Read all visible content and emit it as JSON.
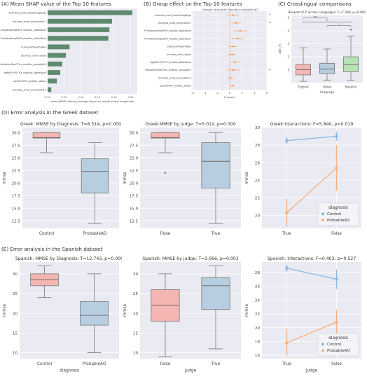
{
  "sections": {
    "a": "(A) Mean SHAP value of the Top 10 features",
    "b": "(B) Group effect on the Top 10 features",
    "c": "(C) Crosslingual comparisons",
    "d": "(D) Error analysis in the Greek dataset",
    "e": "(E) Error analysis in the Spanish dataset"
  },
  "chart_data": [
    {
      "id": "A",
      "type": "bar",
      "orientation": "horizontal",
      "categories": [
        "business_small_statsPartsgBuge",
        "business_small_percentile0.1",
        "PTimeAdvaltrcgPaiPX_smaDoc_sbbasNase",
        "PTimeAdvaltrcgPaiPX_smaDoc_sbbasNase",
        "businessPhaseProBox",
        "business_small_slopeI",
        "PSacdtionvPaeP-Pcs_smaDoc_pcbusgt6.0",
        "bgNaPX-PH1-PX_smaDoc_sbbasNase",
        "speedrPaPX_smaDoc_sbbasI",
        "business_small_percentile0.3"
      ],
      "values": [
        0.255,
        0.194,
        0.186,
        0.183,
        0.066,
        0.055,
        0.044,
        0.038,
        0.028,
        0.011
      ],
      "xlabel": "mean(|SHAP value|) (average impact on model output magnitude)",
      "xlim": [
        0,
        0.27
      ],
      "color": "#5f8a6e"
    },
    {
      "id": "B",
      "type": "scatter",
      "title": "Changes of acoustic features in probable AD",
      "categories": [
        "business_small_statsPartsgBuge",
        "business_small_percentile0.1",
        "PTimeAdvaltrcgPaiPX_smaDoc_sbbasNase",
        "PTimeAdvaltrcgPaiPX_smaDoc_sbbasNase",
        "businessPhaseProBox",
        "business_small_slopeI",
        "bgNaPX-PH1-PX_smaDoc_sbbasNase",
        "PSacdtionvPaeP-Pcs_smaDoc_pcbusgt6.0",
        "business_small_percentile0.3",
        "speedrPaPX_smaDoc_sbbasI"
      ],
      "values": [
        0.5,
        1.0,
        1.7,
        1.3,
        0.5,
        0.4,
        0.8,
        0.6,
        0.2,
        0.4
      ],
      "errors": [
        1.0,
        0.8,
        1.1,
        1.0,
        0.7,
        0.6,
        0.8,
        1.1,
        0.6,
        0.5
      ],
      "markers": [
        "*",
        "*",
        "",
        "",
        "",
        "",
        "",
        "*",
        "",
        ""
      ],
      "xlabel": "Z scores",
      "xlim": [
        -6,
        6
      ],
      "xticks": [
        "-6",
        "-4",
        "-2",
        "0",
        "2",
        "4",
        "6"
      ]
    },
    {
      "id": "C",
      "type": "box",
      "title": "Boxplot of Z across Languages: F=7.300, p=0.001",
      "xlabel": "Language",
      "ylabel": "attri_A",
      "categories": [
        "English",
        "Greek",
        "Spanish"
      ],
      "boxes": [
        {
          "min": 0.1,
          "q1": 0.6,
          "median": 1.0,
          "q3": 1.4,
          "max": 2.7
        },
        {
          "min": 0.2,
          "q1": 0.7,
          "median": 1.05,
          "q3": 1.5,
          "max": 2.6
        },
        {
          "min": 0.2,
          "q1": 0.85,
          "median": 1.4,
          "q3": 2.0,
          "max": 3.6,
          "outliers": [
            4.1
          ]
        }
      ],
      "ylim": [
        0,
        5.2
      ],
      "yticks": [
        "1",
        "2",
        "3",
        "4",
        "5"
      ],
      "significance": [
        {
          "from": 0,
          "to": 1,
          "label": "ns"
        },
        {
          "from": 0,
          "to": 2,
          "label": "**"
        },
        {
          "from": 1,
          "to": 2,
          "label": "*"
        }
      ],
      "colors": [
        "#f4b6b2",
        "#b7cee0",
        "#b9e1b4"
      ]
    },
    {
      "id": "D1",
      "type": "box",
      "title": "Greek: MMSE by Diagnosis: T=8.514, p=0.000",
      "xlabel": "",
      "ylabel": "mmse",
      "categories": [
        "Control",
        "ProbableAD"
      ],
      "boxes": [
        {
          "min": 26,
          "q1": 28.9,
          "median": 29,
          "q3": 30,
          "max": 30
        },
        {
          "min": 12,
          "q1": 18,
          "median": 22.3,
          "q3": 24.8,
          "max": 28
        }
      ],
      "ylim": [
        11,
        31
      ],
      "yticks": [
        "12.5",
        "15.0",
        "17.5",
        "20.0",
        "22.5",
        "25.0",
        "27.5",
        "30.0"
      ]
    },
    {
      "id": "D2",
      "type": "box",
      "title": "Greek:MMSE by judge: T=5.012, p=0.000",
      "xlabel": "",
      "ylabel": "mmse",
      "categories": [
        "False",
        "True"
      ],
      "boxes": [
        {
          "min": 26,
          "q1": 28.9,
          "median": 29,
          "q3": 30,
          "max": 30,
          "outliers": [
            22
          ]
        },
        {
          "min": 12,
          "q1": 19,
          "median": 24.3,
          "q3": 28,
          "max": 30
        }
      ],
      "ylim": [
        11,
        31
      ],
      "yticks": [
        "12.5",
        "15.0",
        "17.5",
        "20.0",
        "22.5",
        "25.0",
        "27.5",
        "30.0"
      ]
    },
    {
      "id": "D3",
      "type": "line",
      "title": "Greek:Interactions: F=5.840, p=0.019",
      "xlabel": "",
      "ylabel": "mmse",
      "x": [
        "True",
        "False"
      ],
      "series": [
        {
          "name": "Control",
          "values": [
            28.5,
            29.0
          ],
          "err": [
            0.4,
            0.5
          ],
          "color": "#87b8e3"
        },
        {
          "name": "ProbableAD",
          "values": [
            20.3,
            25.4
          ],
          "err": [
            1.6,
            2.6
          ],
          "color": "#f6b07f"
        }
      ],
      "legend_title": "diagnosis",
      "legend": "lower-right",
      "ylim": [
        18.5,
        30
      ],
      "yticks": [
        "20",
        "22",
        "24",
        "26",
        "28",
        "30"
      ]
    },
    {
      "id": "E1",
      "type": "box",
      "title": "Spanish: MMSE by Diagnosis: T=12.743, p=0.000",
      "xlabel": "diagnosis",
      "ylabel": "mmse",
      "categories": [
        "Control",
        "ProbableAO"
      ],
      "boxes": [
        {
          "min": 24,
          "q1": 27,
          "median": 28.5,
          "q3": 30,
          "max": 32
        },
        {
          "min": 10,
          "q1": 17,
          "median": 19.5,
          "q3": 23,
          "max": 30
        }
      ],
      "ylim": [
        8.5,
        33
      ],
      "yticks": [
        "10",
        "15",
        "20",
        "25",
        "30"
      ]
    },
    {
      "id": "E2",
      "type": "box",
      "title": "Spanish: MMSE by judge: T=3.066, p=0.003",
      "xlabel": "judge",
      "ylabel": "mmse",
      "categories": [
        "False",
        "True"
      ],
      "boxes": [
        {
          "min": 9,
          "q1": 18,
          "median": 22,
          "q3": 26,
          "max": 30
        },
        {
          "min": 11,
          "q1": 21,
          "median": 27,
          "q3": 29,
          "max": 32
        }
      ],
      "ylim": [
        8.5,
        33
      ],
      "yticks": [
        "10",
        "15",
        "20",
        "25",
        "30"
      ]
    },
    {
      "id": "E3",
      "type": "line",
      "title": "Spanish: Interactions: F=0.403, p=0.527",
      "xlabel": "judge",
      "ylabel": "mmse",
      "x": [
        "True",
        "False"
      ],
      "series": [
        {
          "name": "Control",
          "values": [
            28.6,
            27.0
          ],
          "err": [
            0.5,
            1.4
          ],
          "color": "#87b8e3"
        },
        {
          "name": "ProbableAO",
          "values": [
            17.8,
            20.8
          ],
          "err": [
            2.0,
            1.8
          ],
          "color": "#f6b07f"
        }
      ],
      "legend_title": "diagnosis",
      "legend": "lower-right",
      "ylim": [
        15.5,
        29.5
      ],
      "yticks": [
        "16",
        "18",
        "20",
        "22",
        "24",
        "26",
        "28"
      ]
    }
  ]
}
